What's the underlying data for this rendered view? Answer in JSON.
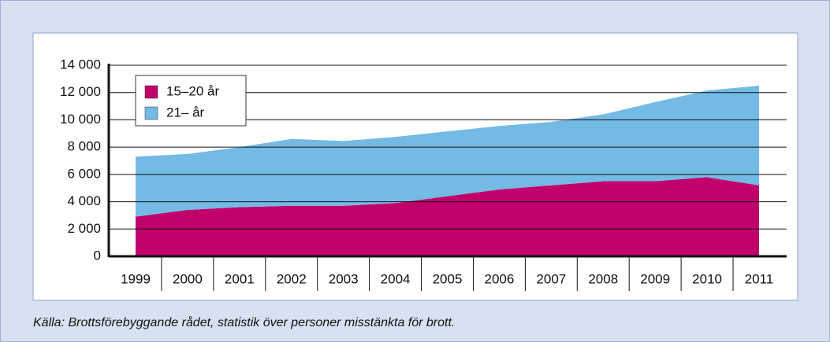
{
  "chart_data": {
    "type": "stacked-area",
    "source": "Källa: Brottsförebyggande rådet, statistik över personer misstänkta för brott.",
    "categories": [
      "1999",
      "2000",
      "2001",
      "2002",
      "2003",
      "2004",
      "2005",
      "2006",
      "2007",
      "2008",
      "2009",
      "2010",
      "2011"
    ],
    "series": [
      {
        "name": "15–20 år",
        "color": "#c1006b",
        "values": [
          2900,
          3400,
          3600,
          3700,
          3700,
          3900,
          4400,
          4900,
          5200,
          5500,
          5500,
          5800,
          5200
        ]
      },
      {
        "name": "21– år",
        "color": "#73bae5",
        "values": [
          4400,
          4100,
          4400,
          4900,
          4750,
          4850,
          4750,
          4650,
          4650,
          4900,
          5800,
          6350,
          7300
        ]
      }
    ],
    "ylim": [
      0,
      14000
    ],
    "yticks": [
      0,
      {
        "value": 2000,
        "label": "2 000"
      },
      {
        "value": 4000,
        "label": "4 000"
      },
      {
        "value": 6000,
        "label": "6 000"
      },
      {
        "value": 8000,
        "label": "8 000"
      },
      {
        "value": 10000,
        "label": "10 000"
      },
      {
        "value": 12000,
        "label": "12 000"
      },
      {
        "value": 14000,
        "label": "14 000"
      }
    ],
    "grid": true,
    "legend": "upper left"
  }
}
